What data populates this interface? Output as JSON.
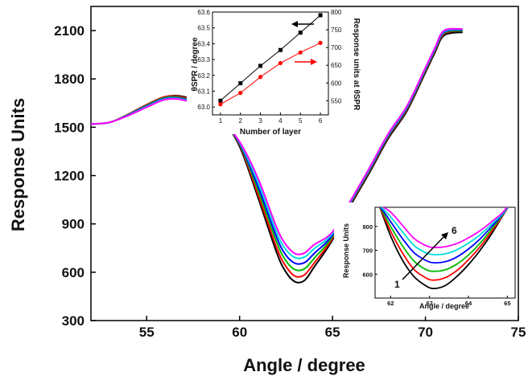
{
  "chart_data": [
    {
      "type": "line",
      "xlabel": "Angle / degree",
      "ylabel": "Response Units",
      "xlim": [
        52,
        75
      ],
      "ylim": [
        300,
        2250
      ],
      "xticks": [
        55,
        60,
        65,
        70,
        75
      ],
      "yticks": [
        300,
        600,
        900,
        1200,
        1500,
        1800,
        2100
      ],
      "series": [
        {
          "color": "#000000",
          "x": [
            52,
            53,
            54,
            55,
            56,
            57,
            58,
            59,
            60,
            61,
            62,
            62.5,
            63,
            63.5,
            64,
            65,
            66,
            67,
            68,
            69,
            70,
            70.5,
            71,
            72
          ],
          "y": [
            1520,
            1530,
            1580,
            1640,
            1690,
            1690,
            1640,
            1560,
            1380,
            1060,
            720,
            600,
            540,
            550,
            630,
            800,
            1020,
            1220,
            1430,
            1600,
            1840,
            1960,
            2070,
            2090
          ]
        },
        {
          "color": "#ff0000",
          "x": [
            52,
            53,
            54,
            55,
            56,
            57,
            58,
            59,
            60,
            61,
            62,
            62.5,
            63,
            63.5,
            64,
            65,
            66,
            67,
            68,
            69,
            70,
            70.5,
            71,
            72
          ],
          "y": [
            1520,
            1530,
            1580,
            1640,
            1690,
            1685,
            1640,
            1560,
            1390,
            1080,
            750,
            635,
            575,
            585,
            655,
            810,
            1030,
            1230,
            1440,
            1610,
            1850,
            1970,
            2080,
            2100
          ]
        },
        {
          "color": "#00bb00",
          "x": [
            52,
            53,
            54,
            55,
            56,
            57,
            58,
            59,
            60,
            61,
            62,
            62.5,
            63,
            63.5,
            64,
            65,
            66,
            67,
            68,
            69,
            70,
            70.5,
            71,
            72
          ],
          "y": [
            1520,
            1530,
            1578,
            1636,
            1685,
            1680,
            1635,
            1557,
            1395,
            1105,
            785,
            670,
            615,
            622,
            685,
            820,
            1035,
            1235,
            1445,
            1615,
            1855,
            1975,
            2085,
            2100
          ]
        },
        {
          "color": "#0000ff",
          "x": [
            52,
            53,
            54,
            55,
            56,
            57,
            58,
            59,
            60,
            61,
            62,
            62.5,
            63,
            63.5,
            64,
            65,
            66,
            67,
            68,
            69,
            70,
            70.5,
            71,
            72
          ],
          "y": [
            1520,
            1530,
            1576,
            1632,
            1680,
            1676,
            1630,
            1554,
            1400,
            1130,
            815,
            705,
            655,
            660,
            715,
            830,
            1040,
            1240,
            1450,
            1620,
            1860,
            1980,
            2090,
            2105
          ]
        },
        {
          "color": "#00dddd",
          "x": [
            52,
            53,
            54,
            55,
            56,
            57,
            58,
            59,
            60,
            61,
            62,
            62.5,
            63,
            63.5,
            64,
            65,
            66,
            67,
            68,
            69,
            70,
            70.5,
            71,
            72
          ],
          "y": [
            1520,
            1530,
            1574,
            1628,
            1676,
            1672,
            1626,
            1551,
            1405,
            1155,
            845,
            740,
            690,
            695,
            745,
            840,
            1045,
            1245,
            1455,
            1625,
            1865,
            1985,
            2095,
            2108
          ]
        },
        {
          "color": "#ff00ff",
          "x": [
            52,
            53,
            54,
            55,
            56,
            57,
            58,
            59,
            60,
            61,
            62,
            62.5,
            63,
            63.5,
            64,
            65,
            66,
            67,
            68,
            69,
            70,
            70.5,
            71,
            72
          ],
          "y": [
            1520,
            1530,
            1572,
            1624,
            1672,
            1668,
            1622,
            1548,
            1410,
            1180,
            875,
            770,
            715,
            720,
            770,
            850,
            1050,
            1250,
            1460,
            1630,
            1870,
            1990,
            2100,
            2110
          ]
        }
      ]
    },
    {
      "type": "line",
      "xlabel": "Number of layer",
      "ylabel": "θSPR / degree",
      "ylabel_right": "Response units at θSPR",
      "xlim": [
        0.6,
        6.4
      ],
      "ylim": [
        62.95,
        63.6
      ],
      "ylim_right": [
        510,
        800
      ],
      "xticks": [
        1,
        2,
        3,
        4,
        5,
        6
      ],
      "yticks": [
        "63.0",
        "63.1",
        "63.2",
        "63.3",
        "63.4",
        "63.5",
        "63.6"
      ],
      "yticks_right": [
        550,
        600,
        650,
        700,
        750,
        800
      ],
      "series": [
        {
          "color": "#000000",
          "marker": "square",
          "axis": "left",
          "x": [
            1,
            2,
            3,
            4,
            5,
            6
          ],
          "y": [
            63.04,
            63.15,
            63.26,
            63.36,
            63.47,
            63.58
          ]
        },
        {
          "color": "#ff0000",
          "marker": "circle",
          "axis": "right",
          "x": [
            1,
            2,
            3,
            4,
            5,
            6
          ],
          "y": [
            540,
            572,
            617,
            656,
            686,
            713
          ]
        }
      ]
    },
    {
      "type": "line",
      "xlabel": "Angle / degree",
      "ylabel": "Response Units",
      "xlim": [
        61.6,
        65.2
      ],
      "ylim": [
        500,
        880
      ],
      "xticks": [
        62,
        63,
        64,
        65
      ],
      "yticks": [
        600,
        700,
        800
      ],
      "annotations": [
        "1",
        "6"
      ],
      "series": [
        {
          "color": "#000000",
          "x": [
            61.7,
            62,
            62.3,
            62.6,
            62.9,
            63.1,
            63.4,
            63.7,
            64,
            64.3,
            64.6,
            64.9,
            65.2
          ],
          "y": [
            890,
            760,
            660,
            590,
            552,
            540,
            552,
            590,
            640,
            700,
            770,
            850,
            930
          ]
        },
        {
          "color": "#ff0000",
          "x": [
            61.7,
            62,
            62.3,
            62.6,
            62.9,
            63.1,
            63.4,
            63.7,
            64,
            64.3,
            64.6,
            64.9,
            65.2
          ],
          "y": [
            890,
            780,
            690,
            620,
            585,
            575,
            585,
            615,
            660,
            715,
            780,
            850,
            930
          ]
        },
        {
          "color": "#00bb00",
          "x": [
            61.7,
            62,
            62.3,
            62.6,
            62.9,
            63.1,
            63.4,
            63.7,
            64,
            64.3,
            64.6,
            64.9,
            65.2
          ],
          "y": [
            890,
            800,
            720,
            655,
            620,
            612,
            618,
            642,
            680,
            730,
            790,
            852,
            930
          ]
        },
        {
          "color": "#0000ff",
          "x": [
            61.7,
            62,
            62.3,
            62.6,
            62.9,
            63.1,
            63.4,
            63.7,
            64,
            64.3,
            64.6,
            64.9,
            65.2
          ],
          "y": [
            890,
            820,
            750,
            690,
            658,
            648,
            652,
            672,
            705,
            748,
            800,
            855,
            930
          ]
        },
        {
          "color": "#00dddd",
          "x": [
            61.7,
            62,
            62.3,
            62.6,
            62.9,
            63.1,
            63.4,
            63.7,
            64,
            64.3,
            64.6,
            64.9,
            65.2
          ],
          "y": [
            890,
            840,
            778,
            720,
            690,
            682,
            685,
            702,
            730,
            765,
            810,
            858,
            930
          ]
        },
        {
          "color": "#ff00ff",
          "x": [
            61.7,
            62,
            62.3,
            62.6,
            62.9,
            63.1,
            63.4,
            63.7,
            64,
            64.3,
            64.6,
            64.9,
            65.2
          ],
          "y": [
            890,
            860,
            805,
            750,
            720,
            712,
            715,
            728,
            752,
            782,
            820,
            862,
            930
          ]
        }
      ]
    }
  ]
}
